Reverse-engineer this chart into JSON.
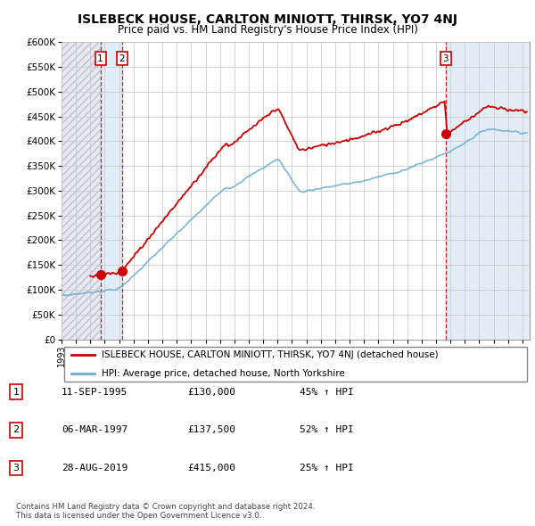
{
  "title": "ISLEBECK HOUSE, CARLTON MINIOTT, THIRSK, YO7 4NJ",
  "subtitle": "Price paid vs. HM Land Registry's House Price Index (HPI)",
  "legend_line1": "ISLEBECK HOUSE, CARLTON MINIOTT, THIRSK, YO7 4NJ (detached house)",
  "legend_line2": "HPI: Average price, detached house, North Yorkshire",
  "transactions": [
    {
      "num": 1,
      "date_str": "11-SEP-1995",
      "price": 130000,
      "pct": "45%",
      "date_x": 1995.7
    },
    {
      "num": 2,
      "date_str": "06-MAR-1997",
      "price": 137500,
      "pct": "52%",
      "date_x": 1997.19
    },
    {
      "num": 3,
      "date_str": "28-AUG-2019",
      "price": 415000,
      "pct": "25%",
      "date_x": 2019.66
    }
  ],
  "table_rows": [
    [
      "1",
      "11-SEP-1995",
      "£130,000",
      "45% ↑ HPI"
    ],
    [
      "2",
      "06-MAR-1997",
      "£137,500",
      "52% ↑ HPI"
    ],
    [
      "3",
      "28-AUG-2019",
      "£415,000",
      "25% ↑ HPI"
    ]
  ],
  "footer": "Contains HM Land Registry data © Crown copyright and database right 2024.\nThis data is licensed under the Open Government Licence v3.0.",
  "hpi_color": "#6baed6",
  "price_color": "#cc0000",
  "vline_color": "#cc0000",
  "ylim": [
    0,
    600000
  ],
  "ytick_vals": [
    0,
    50000,
    100000,
    150000,
    200000,
    250000,
    300000,
    350000,
    400000,
    450000,
    500000,
    550000,
    600000
  ],
  "ytick_labels": [
    "£0",
    "£50K",
    "£100K",
    "£150K",
    "£200K",
    "£250K",
    "£300K",
    "£350K",
    "£400K",
    "£450K",
    "£500K",
    "£550K",
    "£600K"
  ],
  "xlim_start": 1993.0,
  "xlim_end": 2025.5,
  "xtick_years": [
    1993,
    1994,
    1995,
    1996,
    1997,
    1998,
    1999,
    2000,
    2001,
    2002,
    2003,
    2004,
    2005,
    2006,
    2007,
    2008,
    2009,
    2010,
    2011,
    2012,
    2013,
    2014,
    2015,
    2016,
    2017,
    2018,
    2019,
    2020,
    2021,
    2022,
    2023,
    2024,
    2025
  ]
}
